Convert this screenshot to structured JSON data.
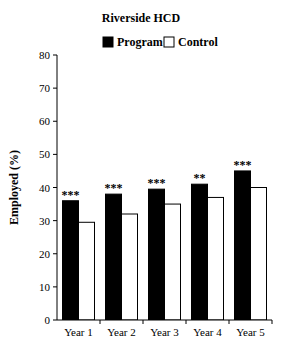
{
  "chart_data": {
    "type": "bar",
    "title": "Riverside HCD",
    "categories": [
      "Year 1",
      "Year 2",
      "Year 3",
      "Year 4",
      "Year 5"
    ],
    "series": [
      {
        "name": "Program",
        "color": "#000000",
        "values": [
          36,
          38,
          39.5,
          41,
          45
        ]
      },
      {
        "name": "Control",
        "color": "#ffffff",
        "values": [
          29.5,
          32,
          35,
          37,
          40
        ]
      }
    ],
    "annotations": [
      "***",
      "***",
      "***",
      "**",
      "***"
    ],
    "y_label": "Employed (%)",
    "ylim": [
      0,
      80
    ],
    "yticks": [
      0,
      10,
      20,
      30,
      40,
      50,
      60,
      70,
      80
    ],
    "grid": false,
    "legend": "top"
  }
}
